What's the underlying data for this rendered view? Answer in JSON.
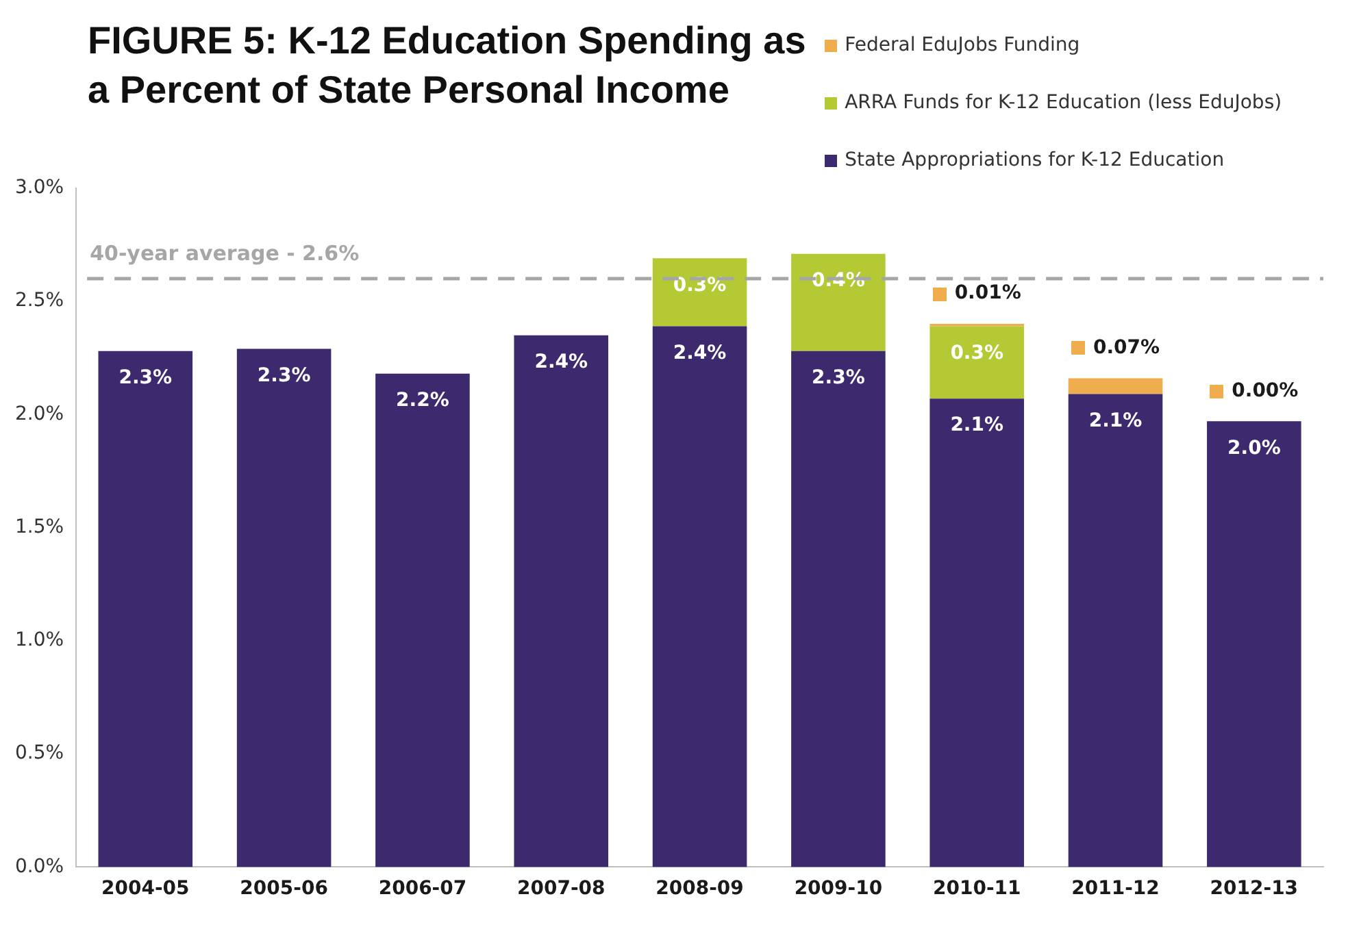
{
  "chart_data": {
    "type": "bar",
    "title": "FIGURE 5: K-12 Education Spending as a Percent of State Personal Income",
    "stacked": true,
    "legend": "top right",
    "grid": false,
    "categories": [
      "2004-05",
      "2005-06",
      "2006-07",
      "2007-08",
      "2008-09",
      "2009-10",
      "2010-11",
      "2011-12",
      "2012-13"
    ],
    "series": [
      {
        "name": "State Appropriations for K-12 Education",
        "color": "#3d2a6e",
        "values": [
          2.28,
          2.29,
          2.18,
          2.35,
          2.39,
          2.28,
          2.07,
          2.09,
          1.97
        ],
        "value_labels": [
          "2.3%",
          "2.3%",
          "2.2%",
          "2.4%",
          "2.4%",
          "2.3%",
          "2.1%",
          "2.1%",
          "2.0%"
        ]
      },
      {
        "name": "ARRA Funds for K-12 Education (less EduJobs)",
        "color": "#b5c934",
        "values": [
          null,
          null,
          null,
          null,
          0.3,
          0.43,
          0.32,
          null,
          null
        ],
        "value_labels": [
          null,
          null,
          null,
          null,
          "0.3%",
          "0.4%",
          "0.3%",
          null,
          null
        ]
      },
      {
        "name": "Federal EduJobs Funding",
        "color": "#f0ad4e",
        "values": [
          null,
          null,
          null,
          null,
          null,
          null,
          0.01,
          0.07,
          0
        ],
        "value_labels": [
          null,
          null,
          null,
          null,
          null,
          null,
          "0.01%",
          "0.07%",
          "0.00%"
        ]
      }
    ],
    "ylim": [
      0,
      3
    ],
    "yticks": [
      {
        "value": 0,
        "label": "0.0%"
      },
      {
        "value": 0.5,
        "label": "0.5%"
      },
      {
        "value": 1,
        "label": "1.0%"
      },
      {
        "value": 1.5,
        "label": "1.5%"
      },
      {
        "value": 2,
        "label": "2.0%"
      },
      {
        "value": 2.5,
        "label": "2.5%"
      },
      {
        "value": 3,
        "label": "3.0%"
      }
    ],
    "ref_lines": [
      {
        "axis": "y",
        "value": 2.6,
        "label": "40-year average - 2.6%",
        "color": "#a6a6a6",
        "line_style": "dashed"
      }
    ]
  }
}
